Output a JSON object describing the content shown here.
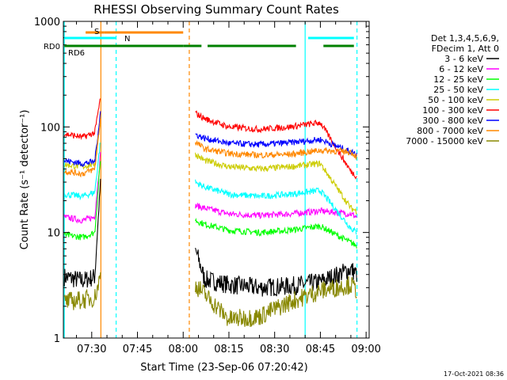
{
  "chart_data": {
    "type": "line",
    "title": "RHESSI Observing Summary Count Rates",
    "xlabel": "Start Time (23-Sep-06 07:20:42)",
    "ylabel": "Count Rate (s⁻¹ detector⁻¹)",
    "y_scale": "log",
    "ylim": [
      1,
      1000
    ],
    "xlim": [
      "07:20:42",
      "09:01:00"
    ],
    "x_ticks": [
      "07:30",
      "07:45",
      "08:00",
      "08:15",
      "08:30",
      "08:45",
      "09:00"
    ],
    "y_ticks": [
      "1",
      "10",
      "100",
      "1000"
    ],
    "timestamp": "17-Oct-2021 08:36",
    "legend": {
      "header": [
        "Det 1,3,4,5,6,9,",
        "FDecim 1, Att 0"
      ],
      "placement": "right",
      "entries": [
        {
          "label": "3 - 6 keV",
          "color": "#000000"
        },
        {
          "label": "6 - 12 keV",
          "color": "#ff00ff"
        },
        {
          "label": "12 - 25 keV",
          "color": "#00ff00"
        },
        {
          "label": "25 - 50 keV",
          "color": "#00ffff"
        },
        {
          "label": "50 - 100 keV",
          "color": "#cccc00"
        },
        {
          "label": "100 - 300 keV",
          "color": "#ff0000"
        },
        {
          "label": "300 - 800 keV",
          "color": "#0000ff"
        },
        {
          "label": "800 - 7000 keV",
          "color": "#ff8800"
        },
        {
          "label": "7000 - 15000 keV",
          "color": "#888800"
        }
      ]
    },
    "flags": [
      {
        "label": "S",
        "color": "#ff8800",
        "segments": [
          [
            "07:28",
            "07:34"
          ],
          [
            "07:34",
            "08:00"
          ]
        ]
      },
      {
        "label": "N",
        "color": "#00ffff",
        "segments": [
          [
            "07:21",
            "07:38"
          ],
          [
            "08:41",
            "08:56"
          ]
        ]
      },
      {
        "label": "RD0",
        "color": "#008000",
        "segments": [
          [
            "07:21",
            "08:00"
          ],
          [
            "08:00",
            "08:06"
          ],
          [
            "08:08",
            "08:37"
          ],
          [
            "08:46",
            "08:56"
          ]
        ]
      },
      {
        "label": "RD6",
        "color": "#008000",
        "segments": []
      }
    ],
    "vertical_markers": [
      {
        "time": "07:21",
        "color": "#00ffff",
        "style": "solid"
      },
      {
        "time": "07:33",
        "color": "#ff8800",
        "style": "solid"
      },
      {
        "time": "07:38",
        "color": "#00ffff",
        "style": "dashed"
      },
      {
        "time": "08:02",
        "color": "#ff8800",
        "style": "dashed"
      },
      {
        "time": "08:40",
        "color": "#00ffff",
        "style": "solid"
      },
      {
        "time": "08:57",
        "color": "#00ffff",
        "style": "dashed"
      }
    ],
    "series": [
      {
        "name": "3 - 6 keV",
        "color": "#000000",
        "intervals": [
          {
            "x": [
              "07:21",
              "07:27",
              "07:31",
              "07:33"
            ],
            "y": [
              3.8,
              3.5,
              3.8,
              35
            ]
          },
          {
            "x": [
              "08:04",
              "08:07",
              "08:15",
              "08:25",
              "08:35",
              "08:45",
              "08:55",
              "08:57"
            ],
            "y": [
              7,
              3.6,
              3.2,
              3.0,
              3.1,
              3.4,
              4.5,
              4.0
            ]
          }
        ]
      },
      {
        "name": "6 - 12 keV",
        "color": "#ff00ff",
        "intervals": [
          {
            "x": [
              "07:21",
              "07:27",
              "07:31",
              "07:33"
            ],
            "y": [
              14,
              13,
              14,
              60
            ]
          },
          {
            "x": [
              "08:04",
              "08:07",
              "08:15",
              "08:25",
              "08:35",
              "08:45",
              "08:55",
              "08:57"
            ],
            "y": [
              18,
              17,
              15,
              14.5,
              15,
              16,
              15,
              14
            ]
          }
        ]
      },
      {
        "name": "12 - 25 keV",
        "color": "#00ff00",
        "intervals": [
          {
            "x": [
              "07:21",
              "07:27",
              "07:31",
              "07:33"
            ],
            "y": [
              9.5,
              9,
              10,
              55
            ]
          },
          {
            "x": [
              "08:04",
              "08:07",
              "08:15",
              "08:25",
              "08:35",
              "08:45",
              "08:55",
              "08:57"
            ],
            "y": [
              13,
              12,
              10.5,
              10,
              10.5,
              11.5,
              8,
              7.5
            ]
          }
        ]
      },
      {
        "name": "25 - 50 keV",
        "color": "#00ffff",
        "intervals": [
          {
            "x": [
              "07:21",
              "07:27",
              "07:31",
              "07:33"
            ],
            "y": [
              23,
              22,
              24,
              80
            ]
          },
          {
            "x": [
              "08:04",
              "08:07",
              "08:15",
              "08:25",
              "08:35",
              "08:45",
              "08:55",
              "08:57"
            ],
            "y": [
              30,
              27,
              23,
              22,
              23,
              25,
              11,
              10
            ]
          }
        ]
      },
      {
        "name": "50 - 100 keV",
        "color": "#cccc00",
        "intervals": [
          {
            "x": [
              "07:21",
              "07:27",
              "07:31",
              "07:33"
            ],
            "y": [
              44,
              42,
              45,
              120
            ]
          },
          {
            "x": [
              "08:04",
              "08:07",
              "08:15",
              "08:25",
              "08:35",
              "08:45",
              "08:55",
              "08:57"
            ],
            "y": [
              55,
              48,
              42,
              40,
              42,
              45,
              17,
              16
            ]
          }
        ]
      },
      {
        "name": "100 - 300 keV",
        "color": "#ff0000",
        "intervals": [
          {
            "x": [
              "07:21",
              "07:27",
              "07:31",
              "07:33"
            ],
            "y": [
              86,
              80,
              88,
              200
            ]
          },
          {
            "x": [
              "08:04",
              "08:07",
              "08:15",
              "08:25",
              "08:35",
              "08:45",
              "08:55",
              "08:57"
            ],
            "y": [
              135,
              120,
              100,
              95,
              100,
              110,
              38,
              34
            ]
          }
        ]
      },
      {
        "name": "300 - 800 keV",
        "color": "#0000ff",
        "intervals": [
          {
            "x": [
              "07:21",
              "07:27",
              "07:31",
              "07:33"
            ],
            "y": [
              48,
              45,
              47,
              150
            ]
          },
          {
            "x": [
              "08:04",
              "08:07",
              "08:15",
              "08:25",
              "08:35",
              "08:45",
              "08:55",
              "08:57"
            ],
            "y": [
              85,
              78,
              70,
              68,
              71,
              76,
              58,
              55
            ]
          }
        ]
      },
      {
        "name": "800 - 7000 keV",
        "color": "#ff8800",
        "intervals": [
          {
            "x": [
              "07:21",
              "07:27",
              "07:31",
              "07:33"
            ],
            "y": [
              38,
              36,
              40,
              130
            ]
          },
          {
            "x": [
              "08:04",
              "08:07",
              "08:15",
              "08:25",
              "08:35",
              "08:45",
              "08:55",
              "08:57"
            ],
            "y": [
              72,
              62,
              56,
              54,
              55,
              60,
              58,
              52
            ]
          }
        ]
      },
      {
        "name": "7000 - 15000 keV",
        "color": "#888800",
        "intervals": [
          {
            "x": [
              "07:21",
              "07:27",
              "07:31",
              "07:33"
            ],
            "y": [
              2.2,
              2.3,
              2.4,
              4
            ]
          },
          {
            "x": [
              "08:04",
              "08:07",
              "08:15",
              "08:25",
              "08:35",
              "08:45",
              "08:55",
              "08:57"
            ],
            "y": [
              3.2,
              2.6,
              1.5,
              1.6,
              2.2,
              2.8,
              3.2,
              2.8
            ]
          }
        ]
      }
    ]
  }
}
